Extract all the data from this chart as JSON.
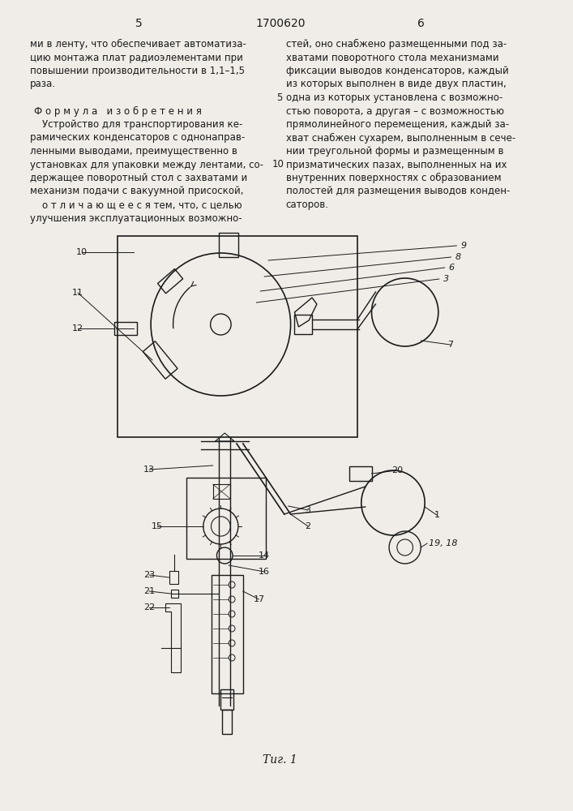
{
  "page_number_left": "5",
  "page_number_center": "1700620",
  "page_number_right": "6",
  "left_col_text": [
    "ми в ленту, что обеспечивает автоматиза-",
    "цию монтажа плат радиоэлементами при",
    "повышении производительности в 1,1–1,5",
    "раза.",
    "",
    "Ф о р м у л а   и з о б р е т е н и я",
    "    Устройство для транспортирования ке-",
    "рамических конденсаторов с однонаправ-",
    "ленными выводами, преимущественно в",
    "установках для упаковки между лентами, со-",
    "держащее поворотный стол с захватами и",
    "механизм подачи с вакуумной присоской,",
    "    о т л и ч а ю щ е е с я тем, что, с целью",
    "улучшения эксплуатационных возможно-"
  ],
  "right_col_text": [
    "стей, оно снабжено размещенными под за-",
    "хватами поворотного стола механизмами",
    "фиксации выводов конденсаторов, каждый",
    "из которых выполнен в виде двух пластин,",
    "одна из которых установлена с возможно-",
    "стью поворота, а другая – с возможностью",
    "прямолинейного перемещения, каждый за-",
    "хват снабжен сухарем, выполненным в сече-",
    "нии треугольной формы и размещенным в",
    "призматических пазах, выполненных на их",
    "внутренних поверхностях с образованием",
    "полостей для размещения выводов конден-",
    "саторов."
  ],
  "line_num_5_idx": 4,
  "line_num_10_idx": 9,
  "fig_caption": "Τиг. 1",
  "bg_color": "#f0ede8",
  "text_color": "#1a1a1a",
  "diagram_color": "#1a1a1a"
}
